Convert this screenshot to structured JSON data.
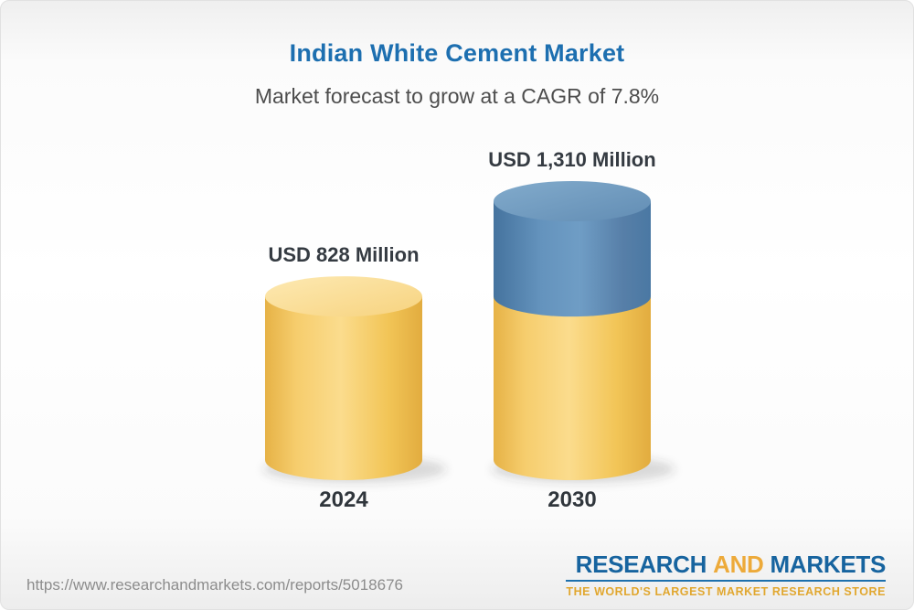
{
  "header": {
    "title": "Indian White Cement Market",
    "subtitle": "Market forecast to grow at a CAGR of 7.8%"
  },
  "chart_data": {
    "type": "bar",
    "variant": "3d-cylinder",
    "title": "Indian White Cement Market",
    "subtitle": "Market forecast to grow at a CAGR of 7.8%",
    "cagr_percent": 7.8,
    "unit": "USD Million",
    "categories": [
      "2024",
      "2030"
    ],
    "values": [
      828,
      1310
    ],
    "value_labels": [
      "USD 828 Million",
      "USD 1,310 Million"
    ],
    "bars": [
      {
        "category": "2024",
        "total": 828,
        "segments": [
          {
            "color_key": "base",
            "value": 828
          }
        ]
      },
      {
        "category": "2030",
        "total": 1310,
        "segments": [
          {
            "color_key": "base",
            "value": 828
          },
          {
            "color_key": "growth",
            "value": 482
          }
        ]
      }
    ],
    "colors": {
      "base": "#f4c75f",
      "growth": "#5d8cb4"
    },
    "legend": false,
    "axes": {
      "x_ticks": [
        "2024",
        "2030"
      ],
      "y_axis_visible": false
    }
  },
  "footer": {
    "url": "https://www.researchandmarkets.com/reports/5018676",
    "logo": {
      "word1": "RESEARCH",
      "word2": "AND",
      "word3": "MARKETS",
      "tagline": "THE WORLD'S LARGEST MARKET RESEARCH STORE"
    }
  }
}
